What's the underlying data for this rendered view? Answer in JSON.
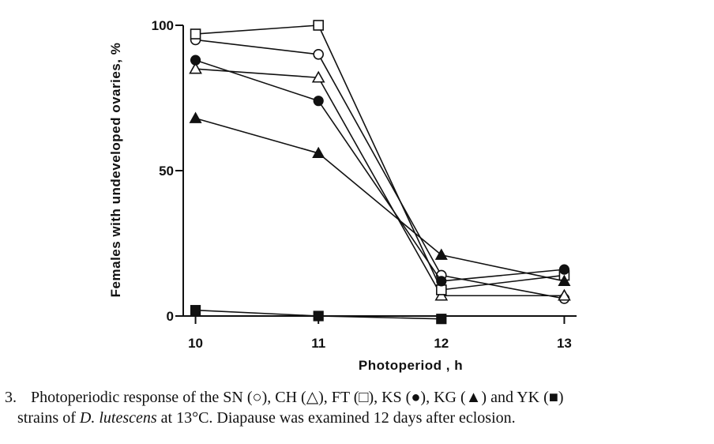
{
  "chart_data": {
    "type": "line",
    "xlabel": "Photoperiod , h",
    "ylabel": "Females with undeveloped ovaries, %",
    "x": [
      10,
      11,
      12,
      13
    ],
    "xlim": [
      9.9,
      13.1
    ],
    "ylim": [
      0,
      100
    ],
    "xticks": [
      "10",
      "11",
      "12",
      "13"
    ],
    "yticks": [
      0,
      50,
      100
    ],
    "grid": false,
    "series": [
      {
        "strain": "SN",
        "marker": "circle-open",
        "values": [
          95,
          90,
          14,
          6
        ]
      },
      {
        "strain": "CH",
        "marker": "triangle-open",
        "values": [
          85,
          82,
          7,
          7
        ]
      },
      {
        "strain": "FT",
        "marker": "square-open",
        "values": [
          97,
          100,
          9,
          14
        ]
      },
      {
        "strain": "KS",
        "marker": "circle-filled",
        "values": [
          88,
          74,
          12,
          16
        ]
      },
      {
        "strain": "KG",
        "marker": "triangle-filled",
        "values": [
          68,
          56,
          21,
          12
        ]
      },
      {
        "strain": "YK",
        "marker": "square-filled",
        "values": [
          2,
          0,
          -1,
          null
        ]
      }
    ]
  },
  "caption": {
    "fig_no": "3.",
    "line1": "Photoperiodic response of the SN (○), CH (△), FT (□), KS (●), KG (▲) and YK (■)",
    "line2_pre": "strains of ",
    "line2_species": "D. lutescens",
    "line2_post": " at 13°C. Diapause was examined 12 days after eclosion."
  }
}
